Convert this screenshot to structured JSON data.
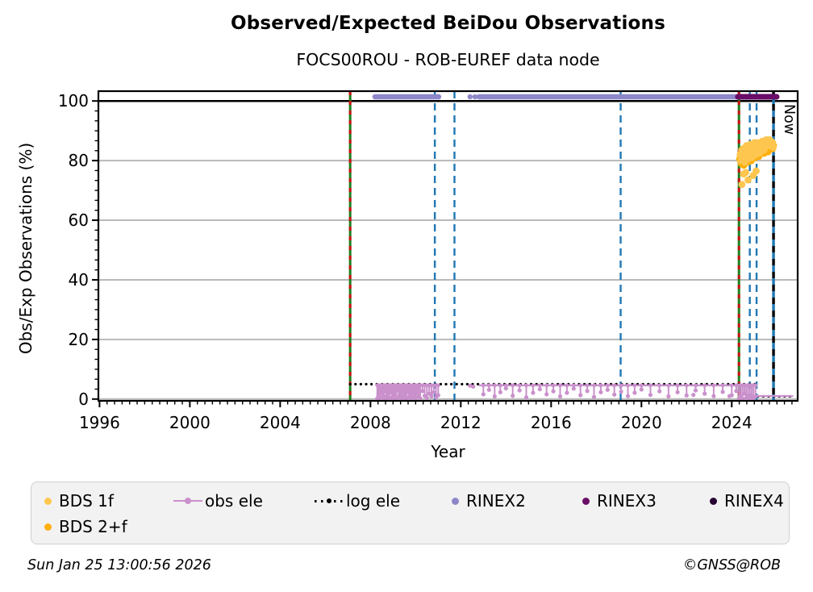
{
  "header": {
    "title": "Observed/Expected BeiDou Observations",
    "subtitle": "FOCS00ROU - ROB-EUREF data node"
  },
  "footer": {
    "timestamp": "Sun Jan 25 13:00:56 2026",
    "copyright": "©GNSS@ROB"
  },
  "legend": {
    "row1": [
      {
        "id": "bds-1f",
        "label": "BDS 1f",
        "marker": "dot",
        "color": "#ffc64f"
      },
      {
        "id": "obs-ele",
        "label": "obs ele",
        "marker": "line-dot",
        "color": "#ca90cc"
      },
      {
        "id": "log-ele",
        "label": "log ele",
        "marker": "dotted-line",
        "color": "#000000"
      },
      {
        "id": "rinex2",
        "label": "RINEX2",
        "marker": "dot",
        "color": "#8d87c9"
      },
      {
        "id": "rinex3",
        "label": "RINEX3",
        "marker": "dot",
        "color": "#6a0d68"
      },
      {
        "id": "rinex4",
        "label": "RINEX4",
        "marker": "dot",
        "color": "#270431"
      }
    ],
    "row2": [
      {
        "id": "bds-2f",
        "label": "BDS 2+f",
        "marker": "dot",
        "color": "#ffaf0c"
      }
    ]
  },
  "chart_data": {
    "type": "scatter",
    "title": "Observed/Expected BeiDou Observations",
    "subtitle": "FOCS00ROU - ROB-EUREF data node",
    "xlabel": "Year",
    "ylabel": "Obs/Exp Observations (%)",
    "xlim": [
      1995.95,
      2026.92
    ],
    "ylim": [
      -0.6,
      103.3
    ],
    "xticks": [
      1996,
      2000,
      2004,
      2008,
      2012,
      2016,
      2020,
      2024
    ],
    "yticks": [
      0,
      20,
      40,
      60,
      80,
      100
    ],
    "x_minor_step": 0.3333,
    "y_minor_step": 3.3333,
    "grid_color": "#b9b9b9",
    "hline": {
      "y": 100,
      "color": "#000000"
    },
    "event_lines": {
      "green_red": {
        "x": [
          2007.1,
          2024.32
        ],
        "green": "#1e7d1e",
        "red": "#cc1111"
      },
      "blue_dashed": {
        "x": [
          2010.85,
          2011.72,
          2019.08,
          2024.8,
          2025.1
        ],
        "color": "#1f77b4"
      },
      "now": {
        "x": 2025.85,
        "label": "Now",
        "black": "#000000",
        "blue": "#1f77b4"
      }
    },
    "rinex2": {
      "label": "RINEX2",
      "color": "#8d87c9",
      "y": 101.4,
      "segments": [
        [
          2008.2,
          2011.02
        ],
        [
          2012.41,
          2012.41
        ],
        [
          2012.63,
          2012.63
        ],
        [
          2012.81,
          2024.27
        ]
      ]
    },
    "rinex3": {
      "label": "RINEX3",
      "color": "#6a0d68",
      "y": 101.4,
      "segments": [
        [
          2024.27,
          2025.99
        ]
      ]
    },
    "rinex4": {
      "label": "RINEX4",
      "color": "#270431",
      "segments": []
    },
    "log_ele": {
      "label": "log ele",
      "color": "#000000",
      "segments": [
        {
          "x": [
            2007.1,
            2025.16
          ],
          "y": 5.0
        },
        {
          "x": [
            2025.16,
            2026.75
          ],
          "y": 0.9
        }
      ]
    },
    "obs_ele": {
      "label": "obs ele",
      "color": "#ca90cc",
      "band_y": 4.6,
      "band_segments": [
        [
          2008.28,
          2011.05
        ],
        [
          2012.81,
          2024.9
        ]
      ],
      "tail": {
        "x": [
          2024.92,
          2026.72
        ],
        "y": 1.0
      },
      "dots": [
        [
          2012.41,
          4.5
        ],
        [
          2012.55,
          4.2
        ],
        [
          2022.3,
          1.4
        ],
        [
          2023.9,
          1.0
        ]
      ],
      "spikes": [
        [
          2008.3,
          0.2
        ],
        [
          2008.35,
          1.4
        ],
        [
          2008.4,
          0.1
        ],
        [
          2008.45,
          2.1
        ],
        [
          2008.5,
          0.6
        ],
        [
          2008.55,
          1.2
        ],
        [
          2008.6,
          0.1
        ],
        [
          2008.65,
          2.6
        ],
        [
          2008.7,
          0.9
        ],
        [
          2008.75,
          0.2
        ],
        [
          2008.8,
          1.8
        ],
        [
          2008.85,
          0.4
        ],
        [
          2008.9,
          2.3
        ],
        [
          2008.95,
          0.1
        ],
        [
          2009.0,
          1.1
        ],
        [
          2009.05,
          0.3
        ],
        [
          2009.1,
          1.7
        ],
        [
          2009.15,
          0.1
        ],
        [
          2009.2,
          2.9
        ],
        [
          2009.25,
          0.7
        ],
        [
          2009.3,
          1.3
        ],
        [
          2009.35,
          0.2
        ],
        [
          2009.4,
          2.2
        ],
        [
          2009.45,
          0.9
        ],
        [
          2009.5,
          0.3
        ],
        [
          2009.55,
          1.6
        ],
        [
          2009.6,
          0.1
        ],
        [
          2009.65,
          2.4
        ],
        [
          2009.7,
          0.6
        ],
        [
          2009.75,
          1.1
        ],
        [
          2009.8,
          0.2
        ],
        [
          2009.85,
          1.9
        ],
        [
          2009.9,
          0.5
        ],
        [
          2009.95,
          1.4
        ],
        [
          2010.0,
          0.1
        ],
        [
          2010.05,
          2.1
        ],
        [
          2010.1,
          0.7
        ],
        [
          2010.15,
          1.5
        ],
        [
          2010.2,
          0.3
        ],
        [
          2010.3,
          2.7
        ],
        [
          2010.4,
          1.1
        ],
        [
          2010.5,
          0.4
        ],
        [
          2010.6,
          1.8
        ],
        [
          2010.7,
          0.9
        ],
        [
          2010.8,
          2.2
        ],
        [
          2010.9,
          0.5
        ],
        [
          2011.0,
          1.3
        ],
        [
          2013.0,
          1.6
        ],
        [
          2013.25,
          3.1
        ],
        [
          2013.5,
          0.9
        ],
        [
          2013.75,
          2.3
        ],
        [
          2014.0,
          3.6
        ],
        [
          2014.3,
          1.1
        ],
        [
          2014.6,
          2.9
        ],
        [
          2014.9,
          0.6
        ],
        [
          2015.2,
          2.1
        ],
        [
          2015.5,
          3.3
        ],
        [
          2015.8,
          1.6
        ],
        [
          2016.1,
          2.6
        ],
        [
          2016.4,
          0.9
        ],
        [
          2016.7,
          2.1
        ],
        [
          2017.0,
          3.5
        ],
        [
          2017.3,
          1.3
        ],
        [
          2017.6,
          2.7
        ],
        [
          2017.9,
          0.7
        ],
        [
          2018.2,
          2.3
        ],
        [
          2018.5,
          3.1
        ],
        [
          2018.8,
          1.5
        ],
        [
          2019.1,
          2.5
        ],
        [
          2019.4,
          1.0
        ],
        [
          2019.7,
          2.1
        ],
        [
          2020.0,
          3.2
        ],
        [
          2020.4,
          1.4
        ],
        [
          2020.8,
          2.6
        ],
        [
          2021.2,
          0.9
        ],
        [
          2021.6,
          2.3
        ],
        [
          2022.0,
          1.2
        ],
        [
          2022.4,
          2.9
        ],
        [
          2022.8,
          1.8
        ],
        [
          2023.2,
          1.0
        ],
        [
          2023.6,
          2.4
        ],
        [
          2024.0,
          1.3
        ],
        [
          2024.2,
          2.7
        ],
        [
          2024.32,
          0.2
        ],
        [
          2024.4,
          1.1
        ],
        [
          2024.48,
          0.1
        ],
        [
          2024.56,
          1.8
        ],
        [
          2024.64,
          0.4
        ],
        [
          2024.72,
          1.2
        ],
        [
          2024.8,
          0.1
        ],
        [
          2024.88,
          0.7
        ],
        [
          2024.96,
          0.2
        ],
        [
          2025.05,
          0.9
        ]
      ]
    },
    "bds_2f": {
      "label": "BDS 2+f",
      "color": "#ffaf0c",
      "points": [
        [
          2024.36,
          80.5
        ],
        [
          2024.39,
          82
        ],
        [
          2024.43,
          79
        ],
        [
          2024.46,
          83
        ],
        [
          2024.5,
          81
        ],
        [
          2024.53,
          78.5
        ],
        [
          2024.56,
          82.5
        ],
        [
          2024.6,
          80
        ],
        [
          2024.63,
          84
        ],
        [
          2024.66,
          81.5
        ],
        [
          2024.7,
          79.5
        ],
        [
          2024.73,
          83
        ],
        [
          2024.76,
          81
        ],
        [
          2024.8,
          84.5
        ],
        [
          2024.83,
          82
        ],
        [
          2024.86,
          80
        ],
        [
          2024.9,
          83.5
        ],
        [
          2024.93,
          81.5
        ],
        [
          2024.96,
          85
        ],
        [
          2025.0,
          83
        ],
        [
          2025.03,
          81
        ],
        [
          2025.06,
          84
        ],
        [
          2025.1,
          82.5
        ],
        [
          2025.13,
          85.5
        ],
        [
          2025.16,
          83.5
        ],
        [
          2025.2,
          81.5
        ],
        [
          2025.23,
          84.5
        ],
        [
          2025.26,
          82.5
        ],
        [
          2025.3,
          85
        ],
        [
          2025.33,
          83
        ],
        [
          2025.36,
          86
        ],
        [
          2025.4,
          84
        ],
        [
          2025.43,
          82.5
        ],
        [
          2025.46,
          85.5
        ],
        [
          2025.5,
          84
        ],
        [
          2025.53,
          86.5
        ],
        [
          2025.56,
          84.5
        ],
        [
          2025.6,
          83
        ],
        [
          2025.63,
          85.5
        ],
        [
          2025.66,
          84
        ],
        [
          2025.7,
          86
        ],
        [
          2025.73,
          84.5
        ],
        [
          2025.76,
          85.5
        ],
        [
          2025.8,
          84
        ],
        [
          2025.84,
          85
        ]
      ]
    },
    "bds_1f": {
      "label": "BDS 1f",
      "color": "#ffc64f",
      "points": [
        [
          2024.37,
          82
        ],
        [
          2024.41,
          80
        ],
        [
          2024.44,
          83.5
        ],
        [
          2024.48,
          81
        ],
        [
          2024.51,
          84
        ],
        [
          2024.55,
          82
        ],
        [
          2024.58,
          79.5
        ],
        [
          2024.62,
          83
        ],
        [
          2024.65,
          85
        ],
        [
          2024.69,
          82.5
        ],
        [
          2024.72,
          80.5
        ],
        [
          2024.76,
          84
        ],
        [
          2024.79,
          82
        ],
        [
          2024.83,
          85.5
        ],
        [
          2024.86,
          83
        ],
        [
          2024.9,
          81
        ],
        [
          2024.93,
          84.5
        ],
        [
          2024.97,
          82.5
        ],
        [
          2025.0,
          86
        ],
        [
          2025.04,
          84
        ],
        [
          2025.07,
          82
        ],
        [
          2025.11,
          85
        ],
        [
          2025.14,
          83.5
        ],
        [
          2025.18,
          86
        ],
        [
          2025.21,
          84.5
        ],
        [
          2025.25,
          82.5
        ],
        [
          2025.28,
          85.5
        ],
        [
          2025.32,
          84
        ],
        [
          2025.35,
          86.5
        ],
        [
          2025.39,
          85
        ],
        [
          2025.42,
          83.5
        ],
        [
          2025.46,
          86
        ],
        [
          2025.49,
          84.5
        ],
        [
          2025.53,
          87
        ],
        [
          2025.56,
          85.5
        ],
        [
          2025.6,
          86.5
        ],
        [
          2025.63,
          85
        ],
        [
          2025.67,
          87
        ],
        [
          2025.7,
          85.5
        ],
        [
          2025.74,
          86.5
        ],
        [
          2025.77,
          85
        ],
        [
          2025.81,
          86
        ],
        [
          2025.84,
          84.5
        ],
        [
          2024.45,
          72
        ],
        [
          2024.52,
          75.5
        ],
        [
          2024.62,
          76
        ],
        [
          2024.72,
          73.5
        ],
        [
          2024.95,
          75
        ],
        [
          2025.08,
          76.5
        ]
      ]
    }
  }
}
